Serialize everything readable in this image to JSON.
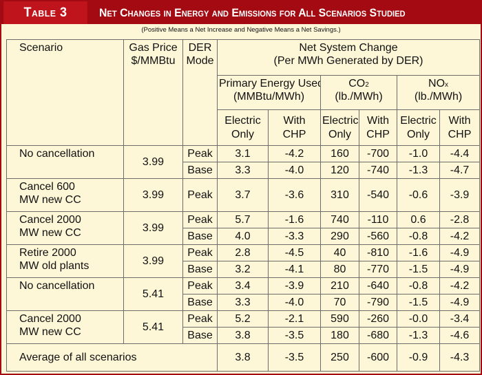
{
  "table_label": "Table 3",
  "title": "Net Changes in Energy and Emissions for All Scenarios Studied",
  "subtitle": "(Positive Means a Net Increase and Negative Means a Net Savings.)",
  "headers": {
    "scenario": "Scenario",
    "gas_price_line1": "Gas Price",
    "gas_price_line2": "$/MMBtu",
    "der_line1": "DER",
    "der_line2": "Mode",
    "net_line1": "Net System Change",
    "net_line2": "(Per MWh Generated by DER)",
    "energy_line1": "Primary Energy Used",
    "energy_line2": "(MMBtu/MWh)",
    "co2_base": "CO",
    "co2_sub": "2",
    "co2_unit": "(lb./MWh)",
    "nox_base": "NO",
    "nox_sub": "x",
    "nox_unit": "(lb./MWh)",
    "electric_line1": "Electric",
    "electric_line2": "Only",
    "chp_line1": "With",
    "chp_line2": "CHP"
  },
  "scenarios": [
    {
      "name_line1": "No cancellation",
      "name_line2": "",
      "gas_price": "3.99",
      "rows": [
        {
          "mode": "Peak",
          "vals": [
            "3.1",
            "-4.2",
            "160",
            "-700",
            "-1.0",
            "-4.4"
          ]
        },
        {
          "mode": "Base",
          "vals": [
            "3.3",
            "-4.0",
            "120",
            "-740",
            "-1.3",
            "-4.7"
          ]
        }
      ]
    },
    {
      "name_line1": "Cancel 600",
      "name_line2": "MW new CC",
      "gas_price": "3.99",
      "rows": [
        {
          "mode": "Peak",
          "vals": [
            "3.7",
            "-3.6",
            "310",
            "-540",
            "-0.6",
            "-3.9"
          ]
        }
      ]
    },
    {
      "name_line1": "Cancel 2000",
      "name_line2": "MW new CC",
      "gas_price": "3.99",
      "rows": [
        {
          "mode": "Peak",
          "vals": [
            "5.7",
            "-1.6",
            "740",
            "-110",
            "0.6",
            "-2.8"
          ]
        },
        {
          "mode": "Base",
          "vals": [
            "4.0",
            "-3.3",
            "290",
            "-560",
            "-0.8",
            "-4.2"
          ]
        }
      ]
    },
    {
      "name_line1": "Retire 2000",
      "name_line2": "MW old plants",
      "gas_price": "3.99",
      "rows": [
        {
          "mode": "Peak",
          "vals": [
            "2.8",
            "-4.5",
            "40",
            "-810",
            "-1.6",
            "-4.9"
          ]
        },
        {
          "mode": "Base",
          "vals": [
            "3.2",
            "-4.1",
            "80",
            "-770",
            "-1.5",
            "-4.9"
          ]
        }
      ]
    },
    {
      "name_line1": "No cancellation",
      "name_line2": "",
      "gas_price": "5.41",
      "rows": [
        {
          "mode": "Peak",
          "vals": [
            "3.4",
            "-3.9",
            "210",
            "-640",
            "-0.8",
            "-4.2"
          ]
        },
        {
          "mode": "Base",
          "vals": [
            "3.3",
            "-4.0",
            "70",
            "-790",
            "-1.5",
            "-4.9"
          ]
        }
      ]
    },
    {
      "name_line1": "Cancel 2000",
      "name_line2": "MW new CC",
      "gas_price": "5.41",
      "rows": [
        {
          "mode": "Peak",
          "vals": [
            "5.2",
            "-2.1",
            "590",
            "-260",
            "-0.0",
            "-3.4"
          ]
        },
        {
          "mode": "Base",
          "vals": [
            "3.8",
            "-3.5",
            "180",
            "-680",
            "-1.3",
            "-4.6"
          ]
        }
      ]
    }
  ],
  "average": {
    "label": "Average of all scenarios",
    "vals": [
      "3.8",
      "-3.5",
      "250",
      "-600",
      "-0.9",
      "-4.3"
    ]
  },
  "colors": {
    "title_bar": "#a30a12",
    "table_label_bg": "#c0141d",
    "background": "#fdf7d7",
    "rule": "#6b6b6b"
  }
}
